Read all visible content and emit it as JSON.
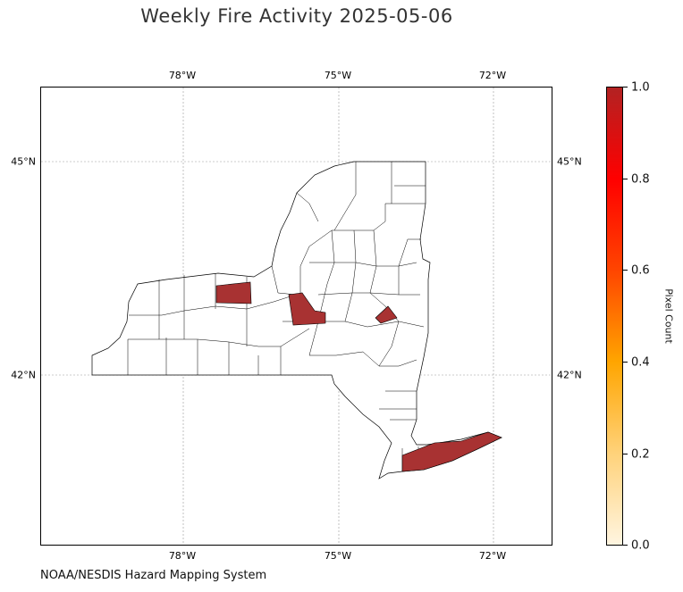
{
  "title": "Weekly Fire Activity 2025-05-06",
  "credit": "NOAA/NESDIS Hazard Mapping System",
  "map": {
    "region": "New York State counties",
    "lon_ticks": [
      "78°W",
      "75°W",
      "72°W"
    ],
    "lat_ticks": [
      "45°N",
      "42°N"
    ],
    "grid": true,
    "fire_color": "#a83232",
    "county_fill": "#ffffff",
    "county_stroke": "#000000"
  },
  "colorbar": {
    "label": "Pixel Count",
    "ticks": [
      "1.0",
      "0.8",
      "0.6",
      "0.4",
      "0.2",
      "0.0"
    ],
    "colors": [
      "#fff5e0",
      "#ffd27a",
      "#ffa500",
      "#ff4500",
      "#ff0000",
      "#b22222"
    ]
  }
}
